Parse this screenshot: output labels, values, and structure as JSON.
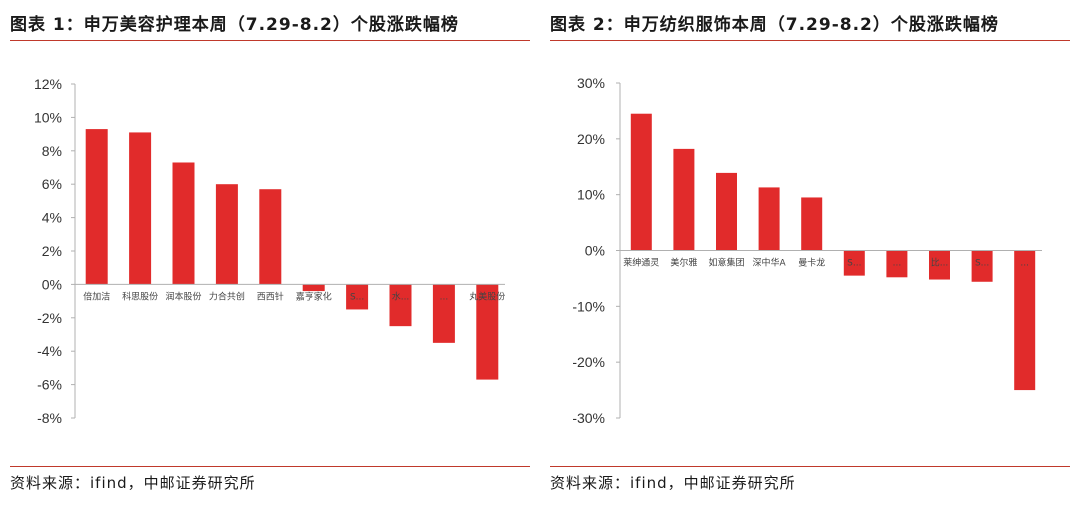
{
  "colors": {
    "bar": "#e12b2b",
    "axis": "#b0b0b0",
    "rule": "#c0392b"
  },
  "chart_data": [
    {
      "type": "bar",
      "title": "图表 1：申万美容护理本周（7.29-8.2）个股涨跌幅榜",
      "source": "资料来源：ifind，中邮证券研究所",
      "categories": [
        "倍加洁",
        "科思股份",
        "润本股份",
        "力合共创",
        "西西针",
        "嘉亨家化",
        "S...",
        "水...",
        "...",
        "丸美股份"
      ],
      "values": [
        9.3,
        9.1,
        7.3,
        6.0,
        5.7,
        -0.4,
        -1.5,
        -2.5,
        -3.5,
        -5.7
      ],
      "ylim": [
        -8,
        12
      ],
      "yticks": [
        "12%",
        "10%",
        "8%",
        "6%",
        "4%",
        "2%",
        "0%",
        "-2%",
        "-4%",
        "-6%",
        "-8%"
      ],
      "xlabel": "",
      "ylabel": "",
      "grid": false
    },
    {
      "type": "bar",
      "title": "图表 2：申万纺织服饰本周（7.29-8.2）个股涨跌幅榜",
      "source": "资料来源：ifind，中邮证券研究所",
      "categories": [
        "莱绅通灵",
        "美尔雅",
        "如意集团",
        "深中华A",
        "曼卡龙",
        "S...",
        "...",
        "比...",
        "S...",
        "..."
      ],
      "values": [
        24.5,
        18.2,
        13.9,
        11.3,
        9.5,
        -4.5,
        -4.8,
        -5.2,
        -5.6,
        -25.0
      ],
      "ylim": [
        -30,
        30
      ],
      "yticks": [
        "30%",
        "20%",
        "10%",
        "0%",
        "-10%",
        "-20%",
        "-30%"
      ],
      "xlabel": "",
      "ylabel": "",
      "grid": false
    }
  ]
}
